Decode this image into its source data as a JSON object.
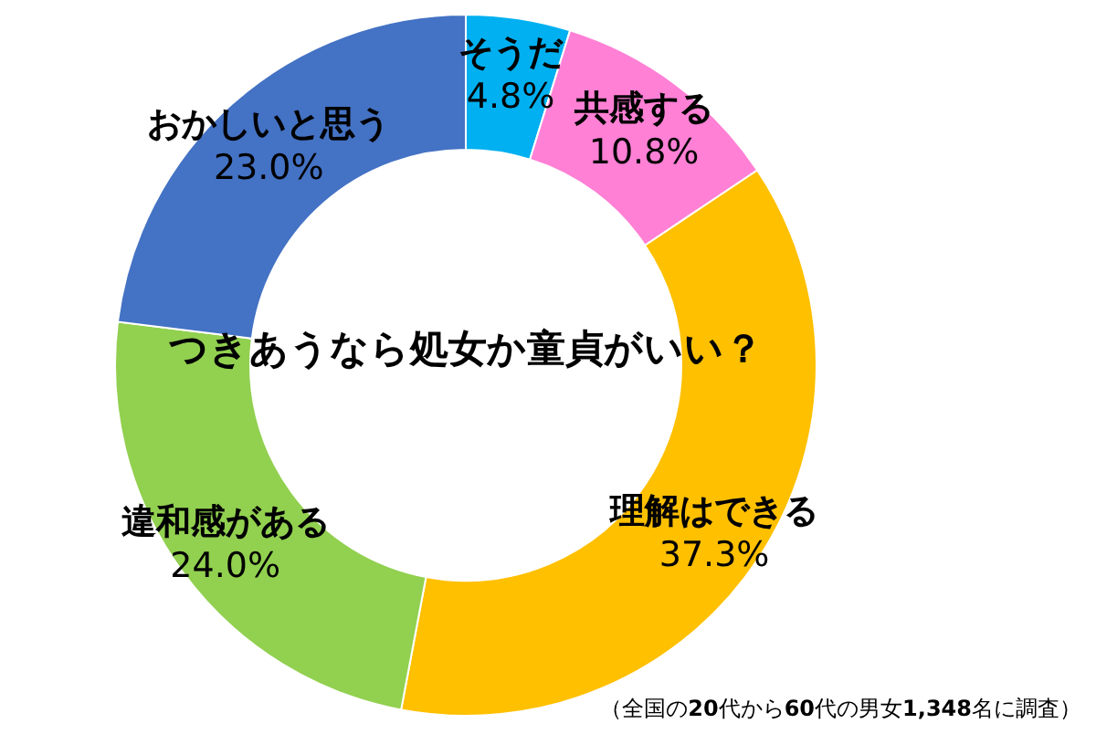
{
  "chart_data": {
    "type": "donut",
    "title": "つきあうなら処女か童貞がいい？",
    "categories": [
      "そうだ",
      "共感する",
      "理解はできる",
      "違和感がある",
      "おかしいと思う"
    ],
    "values": [
      4.8,
      10.8,
      37.3,
      24.0,
      23.0
    ],
    "value_labels": [
      "4.8%",
      "10.8%",
      "37.3%",
      "24.0%",
      "23.0%"
    ],
    "colors": [
      "#00b0f0",
      "#ff80d5",
      "#ffc000",
      "#92d050",
      "#4472c4"
    ],
    "annotations": [
      "（全国の**20**代から**60**代の男女**1,348**名に調査）"
    ]
  }
}
